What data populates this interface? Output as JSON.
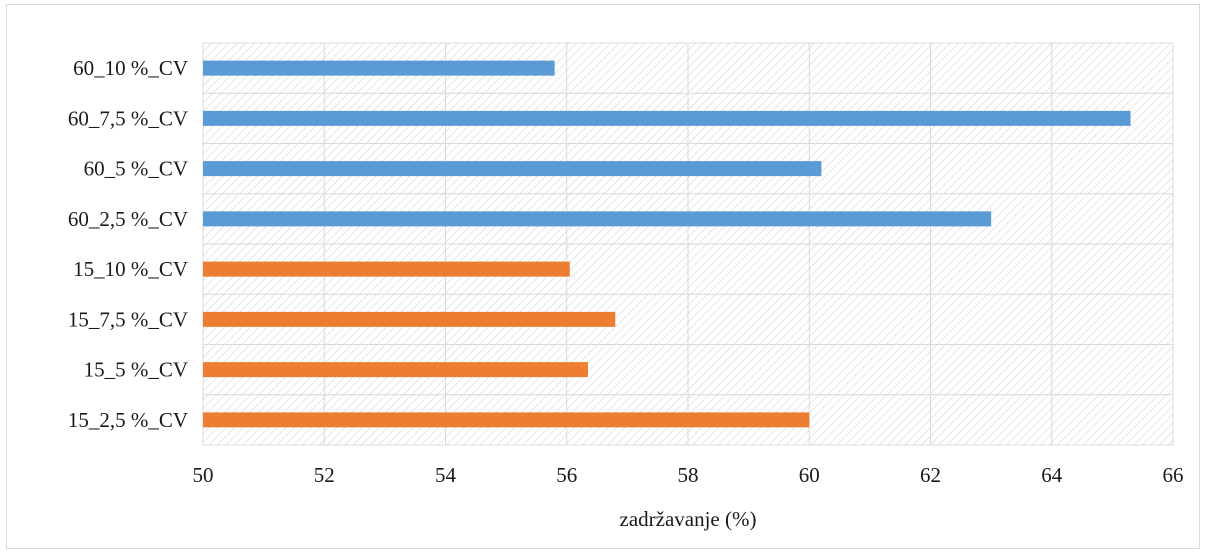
{
  "chart_data": {
    "type": "bar",
    "orientation": "horizontal",
    "title": "",
    "xlabel": "zadržavanje (%)",
    "ylabel": "",
    "xlim": [
      50,
      66
    ],
    "xticks": [
      50,
      52,
      54,
      56,
      58,
      60,
      62,
      64,
      66
    ],
    "grid": true,
    "plot_background": "diagonal hatch",
    "categories": [
      "60_10 %_CV",
      "60_7,5 %_CV",
      "60_5 %_CV",
      "60_2,5 %_CV",
      "15_10 %_CV",
      "15_7,5 %_CV",
      "15_5 %_CV",
      "15_2,5 %_CV"
    ],
    "values": [
      55.8,
      65.3,
      60.2,
      63.0,
      56.05,
      56.8,
      56.35,
      60.0
    ],
    "colors": [
      "#5b9bd5",
      "#5b9bd5",
      "#5b9bd5",
      "#5b9bd5",
      "#ed7d31",
      "#ed7d31",
      "#ed7d31",
      "#ed7d31"
    ]
  }
}
